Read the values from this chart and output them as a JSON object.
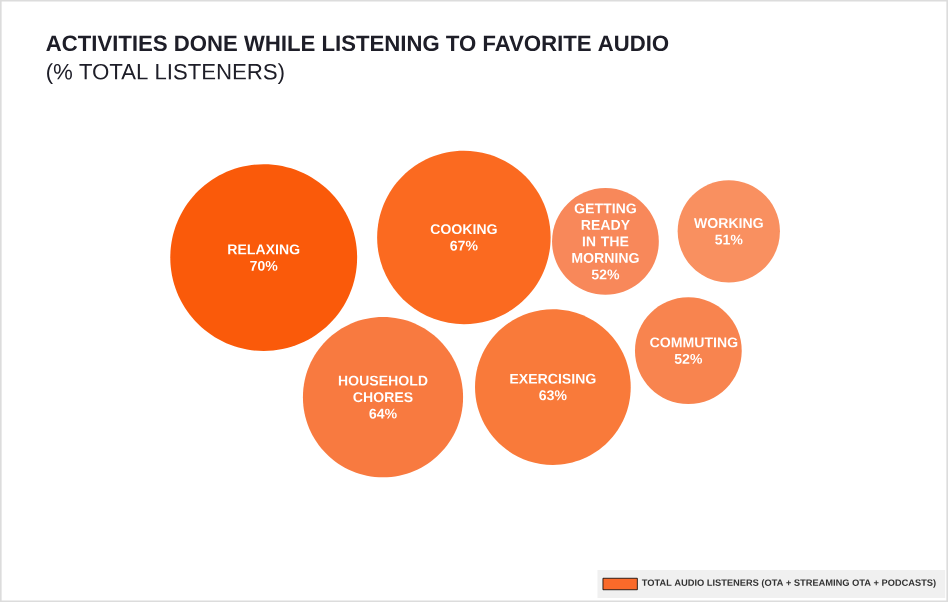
{
  "chart_data": {
    "type": "other",
    "title": "ACTIVITIES DONE WHILE LISTENING TO FAVORITE AUDIO",
    "subtitle": "(% TOTAL LISTENERS)",
    "categories": [
      "RELAXING",
      "COOKING",
      "GETTING READY IN THE MORNING",
      "WORKING",
      "HOUSEHOLD CHORES",
      "EXERCISING",
      "COMMUTING"
    ],
    "series": [
      {
        "name": "TOTAL AUDIO LISTENERS (OTA + STREAMING OTA + PODCASTS)",
        "color": "#fa6a2a",
        "values": [
          70,
          67,
          52,
          51,
          64,
          63,
          52
        ],
        "value_labels": [
          "70%",
          "67%",
          "52%",
          "51%",
          "64%",
          "63%",
          "52%"
        ],
        "colors": [
          "#fa5a0a",
          "#fb6a20",
          "#f8885a",
          "#f99060",
          "#f87a40",
          "#f97a3a",
          "#f8844f"
        ]
      }
    ],
    "legend": "bottom right"
  }
}
